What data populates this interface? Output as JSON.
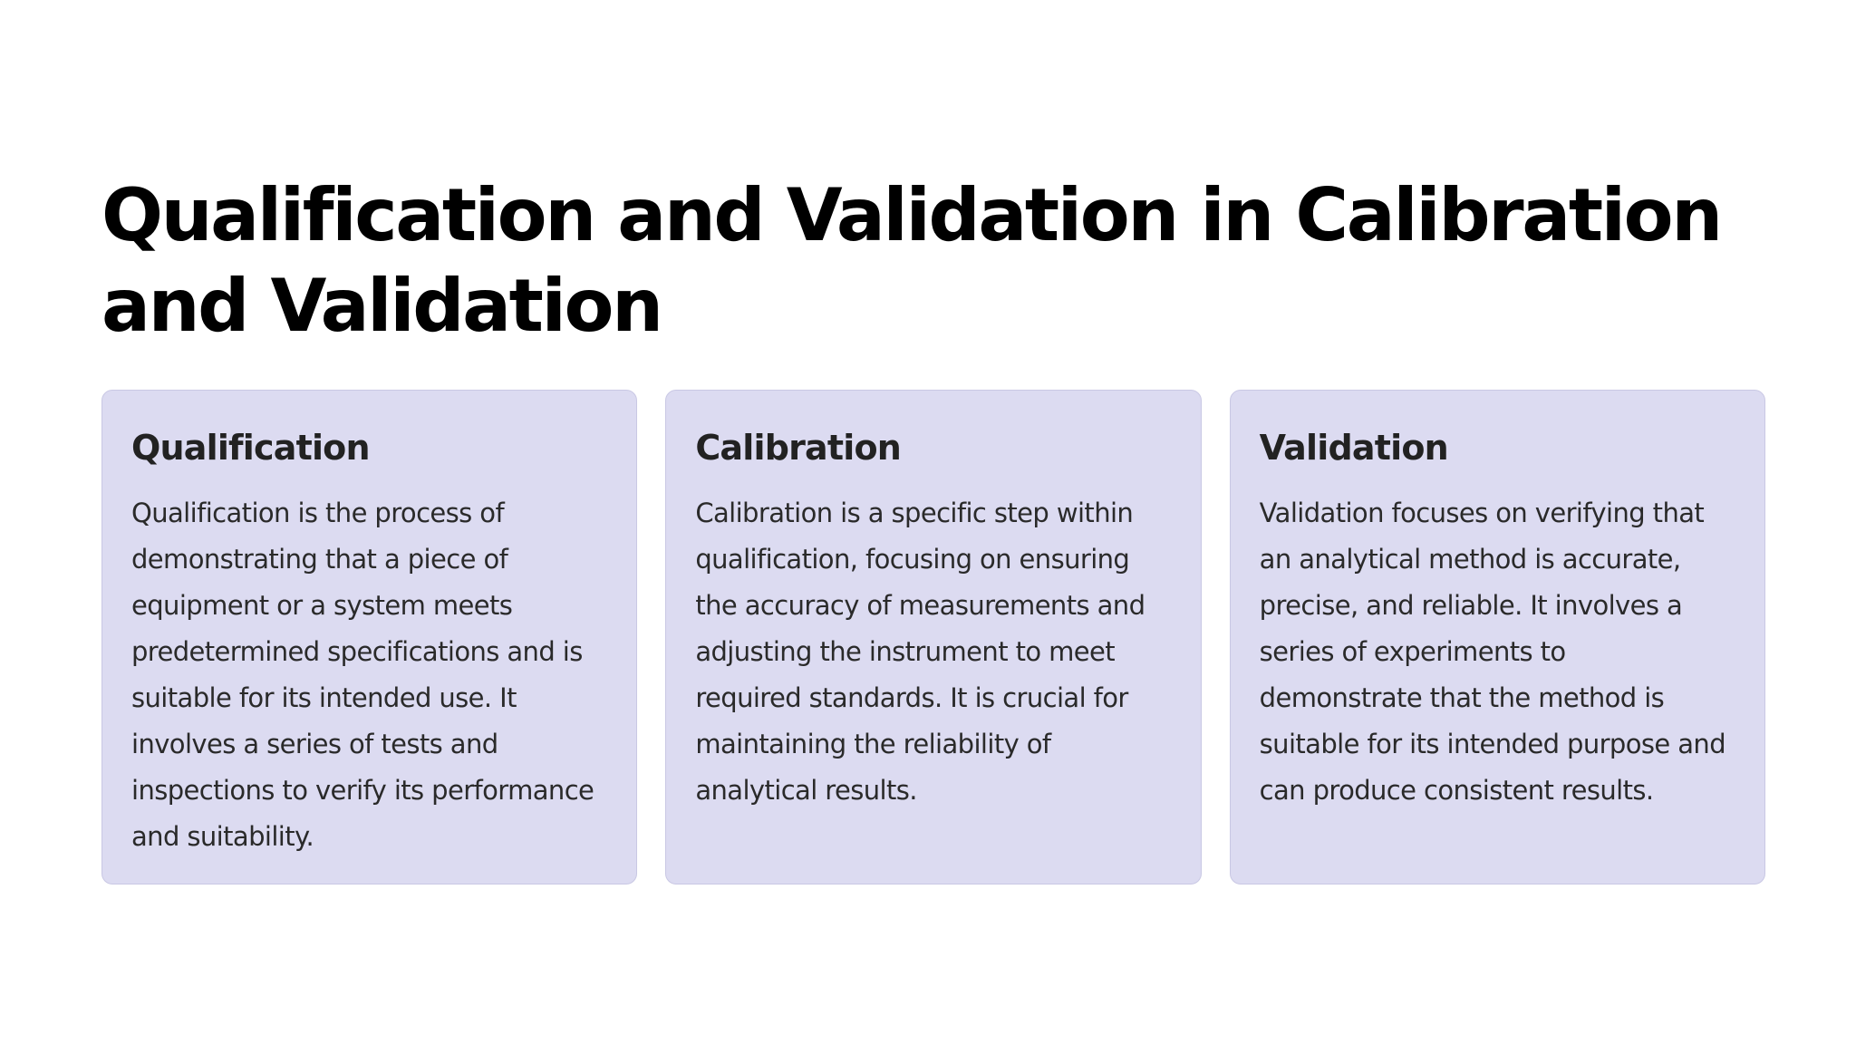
{
  "slide": {
    "title": "Qualification and Validation in Calibration and Validation",
    "cards": [
      {
        "heading": "Qualification",
        "body": "Qualification is the process of demonstrating that a piece of equipment or a system meets predetermined specifications and is suitable for its intended use. It involves a series of tests and inspections to verify its performance and suitability."
      },
      {
        "heading": "Calibration",
        "body": "Calibration is a specific step within qualification, focusing on ensuring the accuracy of measurements and adjusting the instrument to meet required standards. It is crucial for maintaining the reliability of analytical results."
      },
      {
        "heading": "Validation",
        "body": "Validation focuses on verifying that an analytical method is accurate, precise, and reliable. It involves a series of experiments to demonstrate that the method is suitable for its intended purpose and can produce consistent results."
      }
    ],
    "colors": {
      "card_background": "#dcdbf1",
      "card_border": "#c9c8e4",
      "title_text": "#000000",
      "body_text": "#2a2a2a"
    }
  }
}
